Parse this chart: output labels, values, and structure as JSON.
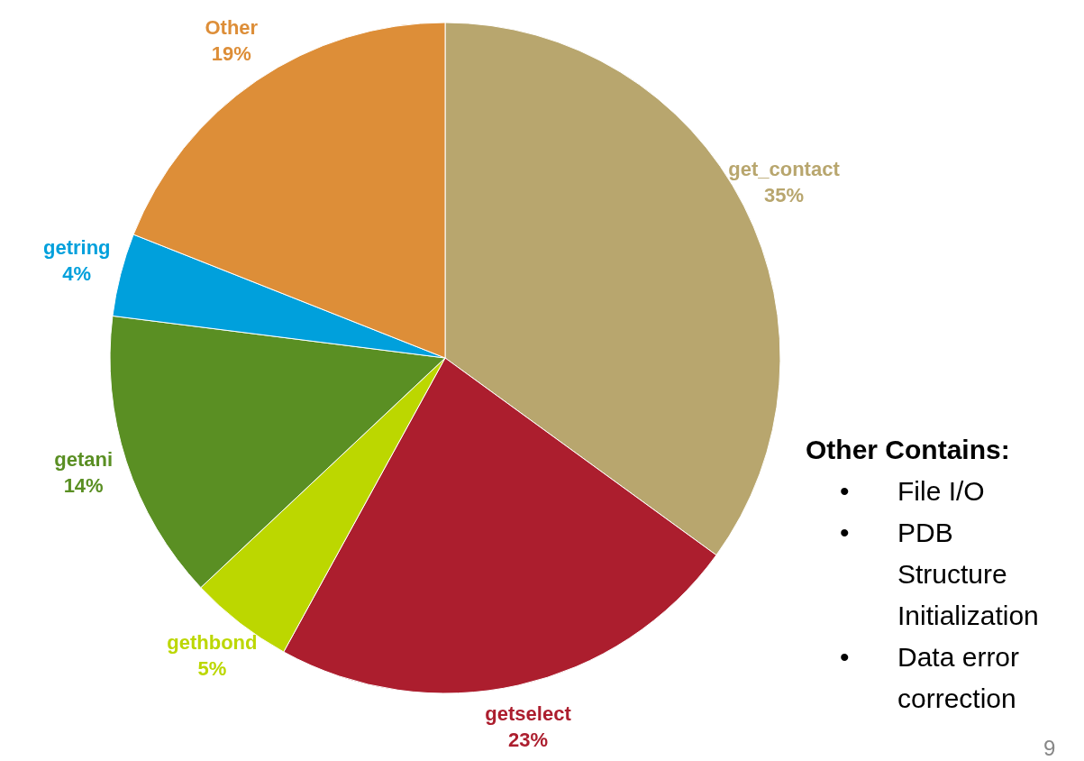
{
  "chart_data": {
    "type": "pie",
    "categories": [
      "get_contact",
      "getselect",
      "gethbond",
      "getani",
      "getring",
      "Other"
    ],
    "values": [
      35,
      23,
      5,
      14,
      4,
      19
    ],
    "value_labels": [
      "35%",
      "23%",
      "5%",
      "14%",
      "4%",
      "19%"
    ],
    "colors": [
      "#b8a66e",
      "#ac1e2e",
      "#bcd700",
      "#5a8f23",
      "#00a0dc",
      "#dd8e38"
    ],
    "annotations": [
      "Other Contains:",
      "• File I/O",
      "• PDB Structure Initialization",
      "• Data error correction",
      "9"
    ]
  }
}
